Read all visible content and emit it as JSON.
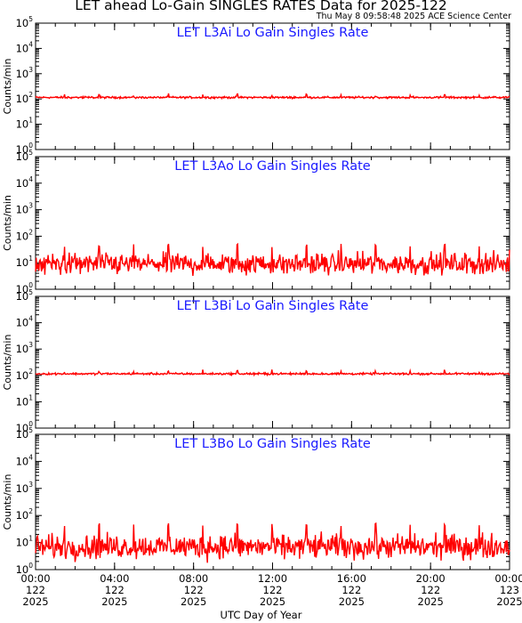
{
  "header": {
    "title": "LET ahead Lo-Gain SINGLES RATES Data for 2025-122",
    "timestamp": "Thu May  8 09:58:48 2025 ACE Science Center"
  },
  "chart_data": [
    {
      "type": "line",
      "title": "LET L3Ai Lo Gain Singles Rate",
      "ylabel": "Counts/min",
      "yscale": "log",
      "ylim": [
        1,
        100000
      ],
      "series": [
        {
          "baseline": 115,
          "noise": 0.05,
          "spike_peak": 145,
          "spike_interval_hours": 1.75,
          "color": "#ff0000"
        }
      ]
    },
    {
      "type": "line",
      "title": "LET L3Ao Lo Gain Singles Rate",
      "ylabel": "Counts/min",
      "yscale": "log",
      "ylim": [
        1,
        100000
      ],
      "series": [
        {
          "baseline": 9,
          "noise": 0.55,
          "spike_peak": 45,
          "spike_interval_hours": 1.75,
          "color": "#ff0000"
        }
      ]
    },
    {
      "type": "line",
      "title": "LET L3Bi Lo Gain Singles Rate",
      "ylabel": "Counts/min",
      "yscale": "log",
      "ylim": [
        1,
        100000
      ],
      "series": [
        {
          "baseline": 115,
          "noise": 0.05,
          "spike_peak": 145,
          "spike_interval_hours": 1.75,
          "color": "#ff0000"
        }
      ]
    },
    {
      "type": "line",
      "title": "LET L3Bo Lo Gain Singles Rate",
      "ylabel": "Counts/min",
      "yscale": "log",
      "ylim": [
        1,
        100000
      ],
      "series": [
        {
          "baseline": 7,
          "noise": 0.6,
          "spike_peak": 45,
          "spike_interval_hours": 1.75,
          "color": "#ff0000"
        }
      ]
    }
  ],
  "x_axis": {
    "label": "UTC Day of Year",
    "range_hours": [
      0,
      24
    ],
    "ticks": [
      {
        "hour": 0,
        "time": "00:00",
        "day": "122",
        "year": "2025"
      },
      {
        "hour": 4,
        "time": "04:00",
        "day": "122",
        "year": "2025"
      },
      {
        "hour": 8,
        "time": "08:00",
        "day": "122",
        "year": "2025"
      },
      {
        "hour": 12,
        "time": "12:00",
        "day": "122",
        "year": "2025"
      },
      {
        "hour": 16,
        "time": "16:00",
        "day": "122",
        "year": "2025"
      },
      {
        "hour": 20,
        "time": "20:00",
        "day": "122",
        "year": "2025"
      },
      {
        "hour": 24,
        "time": "00:00",
        "day": "123",
        "year": "2025"
      }
    ]
  },
  "y_axis": {
    "tick_base": "10",
    "tick_exponents": [
      "0",
      "1",
      "2",
      "3",
      "4",
      "5"
    ]
  }
}
